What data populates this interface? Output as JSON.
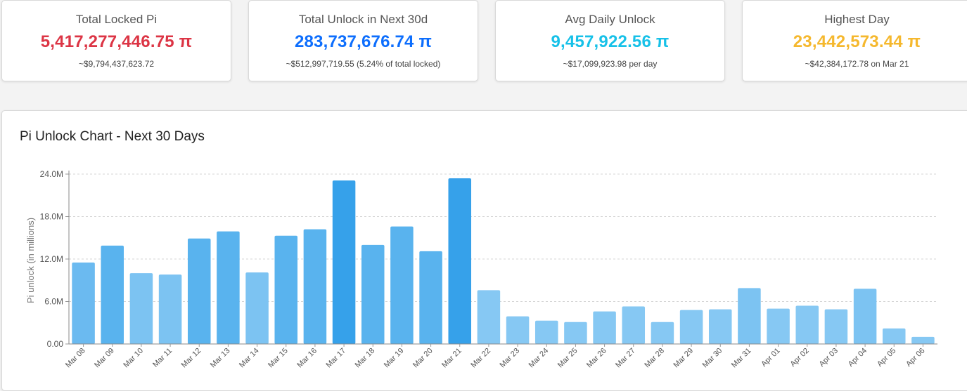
{
  "summary_cards": [
    {
      "title": "Total Locked Pi",
      "value": "5,417,277,446.75 π",
      "sub": "~$9,794,437,623.72",
      "color": "#dc3545"
    },
    {
      "title": "Total Unlock in Next 30d",
      "value": "283,737,676.74 π",
      "sub": "~$512,997,719.55 (5.24% of total locked)",
      "color": "#0d6efd"
    },
    {
      "title": "Avg Daily Unlock",
      "value": "9,457,922.56 π",
      "sub": "~$17,099,923.98 per day",
      "color": "#17c1e8"
    },
    {
      "title": "Highest Day",
      "value": "23,442,573.44 π",
      "sub": "~$42,384,172.78 on Mar 21",
      "color": "#f5b82e"
    }
  ],
  "chart_panel": {
    "title": "Pi Unlock Chart - Next 30 Days"
  },
  "chart_data": {
    "type": "bar",
    "title": "Pi Unlock Chart - Next 30 Days",
    "xlabel": "",
    "ylabel": "Pi unlock (in millions)",
    "ylim": [
      0,
      24
    ],
    "yticks": [
      0,
      6,
      12,
      18,
      24
    ],
    "ytick_labels": [
      "0.00",
      "6.0M",
      "12.0M",
      "18.0M",
      "24.0M"
    ],
    "grid": true,
    "categories": [
      "Mar 08",
      "Mar 09",
      "Mar 10",
      "Mar 11",
      "Mar 12",
      "Mar 13",
      "Mar 14",
      "Mar 15",
      "Mar 16",
      "Mar 17",
      "Mar 18",
      "Mar 19",
      "Mar 20",
      "Mar 21",
      "Mar 22",
      "Mar 23",
      "Mar 24",
      "Mar 25",
      "Mar 26",
      "Mar 27",
      "Mar 28",
      "Mar 29",
      "Mar 30",
      "Mar 31",
      "Apr 01",
      "Apr 02",
      "Apr 03",
      "Apr 04",
      "Apr 05",
      "Apr 06"
    ],
    "values": [
      11.5,
      13.9,
      10.0,
      9.8,
      14.9,
      15.9,
      10.1,
      15.3,
      16.2,
      23.1,
      14.0,
      16.6,
      13.1,
      23.4,
      7.6,
      3.9,
      3.3,
      3.1,
      4.6,
      5.3,
      3.1,
      4.8,
      4.9,
      7.9,
      5.0,
      5.4,
      4.9,
      7.8,
      2.2,
      1.0
    ],
    "bar_colors": [
      "#6bbaf0",
      "#59b3ee",
      "#7cc3f2",
      "#7cc3f2",
      "#59b3ee",
      "#59b3ee",
      "#7cc3f2",
      "#59b3ee",
      "#59b3ee",
      "#36a1ea",
      "#59b3ee",
      "#59b3ee",
      "#59b3ee",
      "#36a1ea",
      "#86c8f3",
      "#86c8f3",
      "#86c8f3",
      "#86c8f3",
      "#86c8f3",
      "#86c8f3",
      "#86c8f3",
      "#86c8f3",
      "#86c8f3",
      "#7cc3f2",
      "#86c8f3",
      "#86c8f3",
      "#86c8f3",
      "#7cc3f2",
      "#86c8f3",
      "#86c8f3"
    ]
  }
}
